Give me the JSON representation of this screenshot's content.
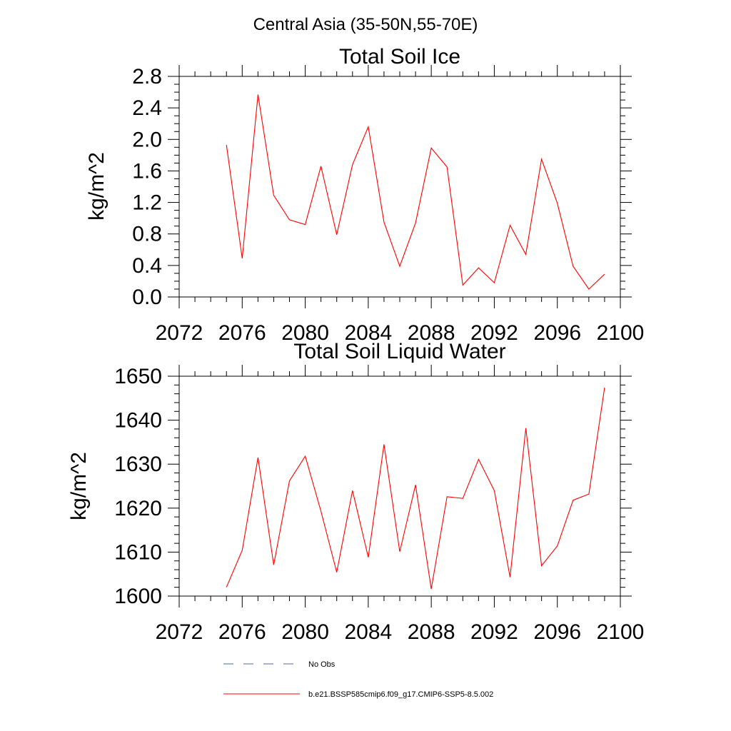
{
  "suptitle": "Central Asia (35-50N,55-70E)",
  "chart_data": [
    {
      "type": "line",
      "title": "Total Soil Ice",
      "xlabel": "",
      "ylabel": "kg/m^2",
      "xlim": [
        2072,
        2100
      ],
      "ylim": [
        0.0,
        2.8
      ],
      "xticks": [
        "2072",
        "2076",
        "2080",
        "2084",
        "2088",
        "2092",
        "2096",
        "2100"
      ],
      "yticks": [
        "0.0",
        "0.4",
        "0.8",
        "1.2",
        "1.6",
        "2.0",
        "2.4",
        "2.8"
      ],
      "series": [
        {
          "name": "b.e21.BSSP585cmip6.f09_g17.CMIP6-SSP5-8.5.002",
          "color": "#ff0000",
          "x": [
            2075,
            2076,
            2077,
            2078,
            2079,
            2080,
            2081,
            2082,
            2083,
            2084,
            2085,
            2086,
            2087,
            2088,
            2089,
            2090,
            2091,
            2092,
            2093,
            2094,
            2095,
            2096,
            2097,
            2098,
            2099
          ],
          "y": [
            1.93,
            0.49,
            2.57,
            1.29,
            0.98,
            0.92,
            1.66,
            0.79,
            1.68,
            2.16,
            0.95,
            0.39,
            0.94,
            1.89,
            1.65,
            0.15,
            0.37,
            0.18,
            0.91,
            0.54,
            1.75,
            1.19,
            0.39,
            0.1,
            0.29
          ]
        }
      ]
    },
    {
      "type": "line",
      "title": "Total Soil Liquid Water",
      "xlabel": "",
      "ylabel": "kg/m^2",
      "xlim": [
        2072,
        2100
      ],
      "ylim": [
        1600,
        1650
      ],
      "xticks": [
        "2072",
        "2076",
        "2080",
        "2084",
        "2088",
        "2092",
        "2096",
        "2100"
      ],
      "yticks": [
        "1600",
        "1610",
        "1620",
        "1630",
        "1640",
        "1650"
      ],
      "series": [
        {
          "name": "b.e21.BSSP585cmip6.f09_g17.CMIP6-SSP5-8.5.002",
          "color": "#ff0000",
          "x": [
            2075,
            2076,
            2077,
            2078,
            2079,
            2080,
            2081,
            2082,
            2083,
            2084,
            2085,
            2086,
            2087,
            2088,
            2089,
            2090,
            2091,
            2092,
            2093,
            2094,
            2095,
            2096,
            2097,
            2098,
            2099
          ],
          "y": [
            1602.0,
            1610.4,
            1631.5,
            1607.1,
            1626.2,
            1631.8,
            1619.3,
            1605.4,
            1624.0,
            1608.8,
            1634.5,
            1610.1,
            1625.3,
            1601.6,
            1622.6,
            1622.2,
            1631.1,
            1624.0,
            1604.3,
            1638.2,
            1606.9,
            1611.4,
            1621.8,
            1623.2,
            1647.4
          ]
        }
      ]
    }
  ],
  "legend": [
    {
      "label": "No Obs",
      "color": "#5a6a9a",
      "style": "dashed"
    },
    {
      "label": "b.e21.BSSP585cmip6.f09_g17.CMIP6-SSP5-8.5.002",
      "color": "#ff0000",
      "style": "solid"
    }
  ]
}
